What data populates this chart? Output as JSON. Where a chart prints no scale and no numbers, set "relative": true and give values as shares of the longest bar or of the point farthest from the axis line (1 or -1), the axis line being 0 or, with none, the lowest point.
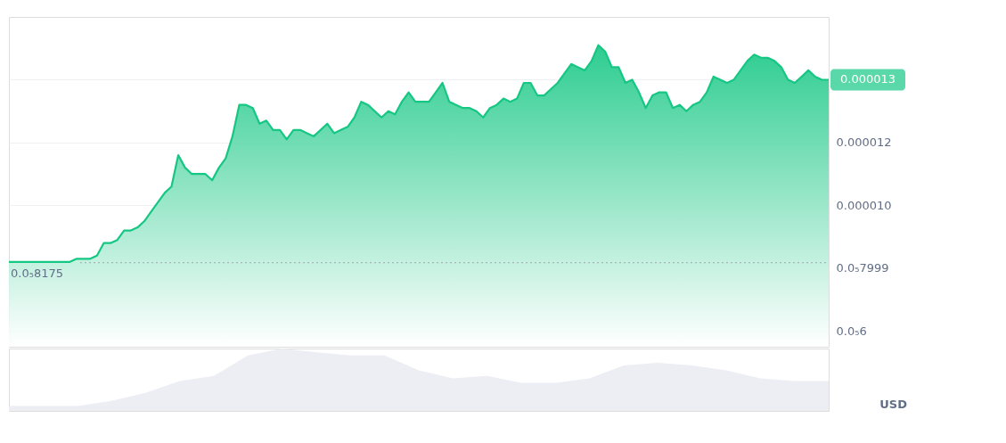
{
  "chart_data": [
    {
      "type": "area",
      "categories": [
        null,
        null,
        null,
        null,
        null,
        null,
        null,
        null,
        null,
        null,
        null,
        null,
        null,
        null,
        null,
        null,
        null,
        null,
        null,
        null,
        null,
        null,
        null,
        null,
        null,
        null,
        null,
        null,
        null,
        null,
        null,
        null,
        null,
        null,
        null,
        null,
        null,
        null,
        null,
        null,
        null,
        null,
        null,
        null,
        null,
        null,
        null,
        null,
        null,
        null,
        null,
        null,
        null,
        null,
        null,
        null,
        null,
        null,
        null,
        null,
        null,
        null,
        null,
        null,
        null,
        null,
        null,
        null,
        null,
        null,
        null,
        null,
        null,
        null,
        null,
        null,
        null,
        null,
        null,
        null,
        null,
        null,
        null,
        null,
        null,
        null,
        null,
        null,
        null,
        null,
        null,
        null,
        null,
        null,
        null,
        null,
        null,
        null,
        null,
        null,
        null,
        null,
        null,
        null,
        null,
        null,
        null,
        null,
        null,
        null,
        null,
        null,
        null,
        null,
        null,
        null,
        null,
        null,
        null,
        null,
        null,
        null
      ],
      "series": [
        {
          "color": "#16c784",
          "values": [
            8.2e-06,
            8.2e-06,
            8.2e-06,
            8.2e-06,
            8.2e-06,
            8.2e-06,
            8.2e-06,
            8.2e-06,
            8.2e-06,
            8.2e-06,
            8.3e-06,
            8.3e-06,
            8.3e-06,
            8.4e-06,
            8.8e-06,
            8.8e-06,
            8.9e-06,
            9.2e-06,
            9.2e-06,
            9.3e-06,
            9.5e-06,
            9.8e-06,
            1.01e-05,
            1.04e-05,
            1.06e-05,
            1.16e-05,
            1.12e-05,
            1.1e-05,
            1.1e-05,
            1.1e-05,
            1.08e-05,
            1.12e-05,
            1.15e-05,
            1.22e-05,
            1.32e-05,
            1.32e-05,
            1.31e-05,
            1.26e-05,
            1.27e-05,
            1.24e-05,
            1.24e-05,
            1.21e-05,
            1.24e-05,
            1.24e-05,
            1.23e-05,
            1.22e-05,
            1.24e-05,
            1.26e-05,
            1.23e-05,
            1.24e-05,
            1.25e-05,
            1.28e-05,
            1.33e-05,
            1.32e-05,
            1.3e-05,
            1.28e-05,
            1.3e-05,
            1.29e-05,
            1.33e-05,
            1.36e-05,
            1.33e-05,
            1.33e-05,
            1.33e-05,
            1.36e-05,
            1.39e-05,
            1.33e-05,
            1.32e-05,
            1.31e-05,
            1.31e-05,
            1.3e-05,
            1.28e-05,
            1.31e-05,
            1.32e-05,
            1.34e-05,
            1.33e-05,
            1.34e-05,
            1.39e-05,
            1.39e-05,
            1.35e-05,
            1.35e-05,
            1.37e-05,
            1.39e-05,
            1.42e-05,
            1.45e-05,
            1.44e-05,
            1.43e-05,
            1.46e-05,
            1.51e-05,
            1.49e-05,
            1.44e-05,
            1.44e-05,
            1.39e-05,
            1.4e-05,
            1.36e-05,
            1.31e-05,
            1.35e-05,
            1.36e-05,
            1.36e-05,
            1.31e-05,
            1.32e-05,
            1.3e-05,
            1.32e-05,
            1.33e-05,
            1.36e-05,
            1.41e-05,
            1.4e-05,
            1.39e-05,
            1.4e-05,
            1.43e-05,
            1.46e-05,
            1.48e-05,
            1.47e-05,
            1.47e-05,
            1.46e-05,
            1.44e-05,
            1.4e-05,
            1.39e-05,
            1.41e-05,
            1.43e-05,
            1.41e-05,
            1.4e-05,
            1.4e-05
          ]
        }
      ],
      "ylim": [
        5.5e-06,
        1.6e-05
      ],
      "yticks": [
        {
          "value": 1.4e-05,
          "label": null
        },
        {
          "value": 1.2e-05,
          "label": "0.000012"
        },
        {
          "value": 1e-05,
          "label": "0.000010"
        },
        {
          "value": 7.999e-06,
          "label": "0.0₅7999"
        },
        {
          "value": 6e-06,
          "label": "0.0₅6"
        }
      ],
      "grid": "y",
      "ref_lines": [
        {
          "axis": "y",
          "value": 8.175e-06,
          "label": "0.0₅8175",
          "color": "#a0a4ad",
          "line_style": "dotted"
        }
      ],
      "annotations": [
        "0.000013"
      ]
    },
    {
      "type": "area",
      "relative": true,
      "categories": [
        null,
        null,
        null,
        null,
        null,
        null,
        null,
        null,
        null,
        null,
        null,
        null,
        null,
        null,
        null,
        null,
        null,
        null,
        null,
        null,
        null,
        null,
        null,
        null,
        null
      ],
      "series": [
        {
          "color": "#eceef3",
          "values": [
            0.08,
            0.08,
            0.08,
            0.16,
            0.29,
            0.48,
            0.56,
            0.89,
            1,
            0.94,
            0.89,
            0.89,
            0.65,
            0.52,
            0.56,
            0.45,
            0.45,
            0.52,
            0.73,
            0.77,
            0.73,
            0.65,
            0.52,
            0.48,
            0.48
          ]
        }
      ],
      "annotations": [
        "USD"
      ]
    }
  ]
}
